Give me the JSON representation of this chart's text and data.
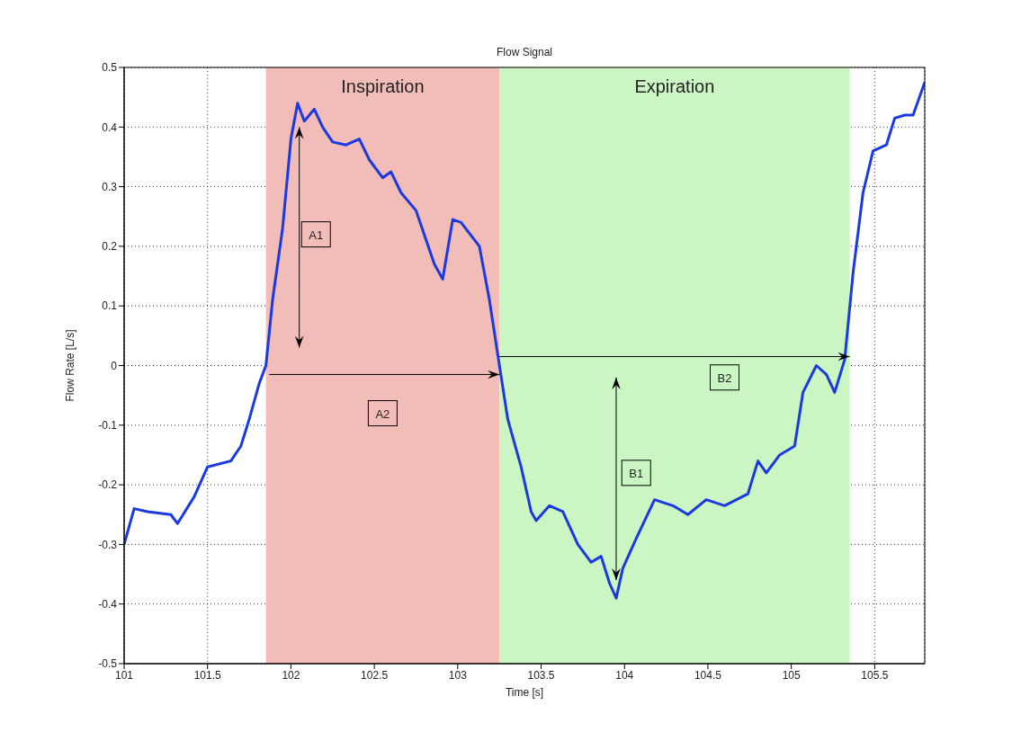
{
  "chart_data": {
    "type": "line",
    "title": "Flow Signal",
    "xlabel": "Time [s]",
    "ylabel": "Flow Rate [L/s]",
    "x": [
      101,
      101.06,
      101.14,
      101.28,
      101.32,
      101.42,
      101.5,
      101.64,
      101.7,
      101.75,
      101.81,
      101.85,
      101.89,
      101.95,
      102,
      102.04,
      102.08,
      102.14,
      102.19,
      102.25,
      102.33,
      102.41,
      102.47,
      102.55,
      102.6,
      102.66,
      102.75,
      102.86,
      102.91,
      102.97,
      103.02,
      103.13,
      103.19,
      103.25,
      103.3,
      103.38,
      103.44,
      103.47,
      103.55,
      103.63,
      103.72,
      103.8,
      103.86,
      103.91,
      103.95,
      103.99,
      104.07,
      104.18,
      104.29,
      104.38,
      104.49,
      104.6,
      104.74,
      104.8,
      104.85,
      104.93,
      105.02,
      105.07,
      105.15,
      105.21,
      105.26,
      105.32,
      105.37,
      105.43,
      105.49,
      105.57,
      105.62,
      105.68,
      105.73,
      105.8
    ],
    "series": [
      {
        "color": "#1a3adf",
        "values": [
          -0.3,
          -0.24,
          -0.245,
          -0.25,
          -0.265,
          -0.22,
          -0.17,
          -0.16,
          -0.135,
          -0.09,
          -0.03,
          0,
          0.11,
          0.23,
          0.38,
          0.44,
          0.41,
          0.43,
          0.4,
          0.375,
          0.37,
          0.38,
          0.345,
          0.315,
          0.325,
          0.29,
          0.26,
          0.17,
          0.145,
          0.245,
          0.24,
          0.2,
          0.11,
          0,
          -0.09,
          -0.17,
          -0.245,
          -0.26,
          -0.235,
          -0.245,
          -0.3,
          -0.33,
          -0.32,
          -0.365,
          -0.39,
          -0.34,
          -0.29,
          -0.225,
          -0.235,
          -0.25,
          -0.225,
          -0.235,
          -0.215,
          -0.16,
          -0.18,
          -0.15,
          -0.135,
          -0.045,
          0,
          -0.015,
          -0.045,
          0.01,
          0.155,
          0.29,
          0.36,
          0.37,
          0.415,
          0.42,
          0.42,
          0.475
        ]
      }
    ],
    "xlim": [
      101,
      105.8
    ],
    "xticks": [
      101,
      101.5,
      102,
      102.5,
      103,
      103.5,
      104,
      104.5,
      105,
      105.5
    ],
    "ylim": [
      -0.5,
      0.5
    ],
    "yticks": [
      -0.5,
      -0.4,
      -0.3,
      -0.2,
      -0.1,
      0,
      0.1,
      0.2,
      0.3,
      0.4,
      0.5
    ],
    "grid": true,
    "marker": "none",
    "line_style": "solid",
    "bands": [
      {
        "axis": "x",
        "from": 101.85,
        "to": 103.25,
        "label": "Inspiration",
        "color": "#f2bcb8"
      },
      {
        "axis": "x",
        "from": 103.25,
        "to": 105.35,
        "label": "Expiration",
        "color": "#ccf5c4"
      }
    ],
    "annotations": [
      {
        "text": "A1",
        "x": 102.15,
        "y": 0.22
      },
      {
        "text": "A2",
        "x": 102.55,
        "y": -0.08
      },
      {
        "text": "B1",
        "x": 104.07,
        "y": -0.18
      },
      {
        "text": "B2",
        "x": 104.6,
        "y": -0.02
      }
    ]
  }
}
